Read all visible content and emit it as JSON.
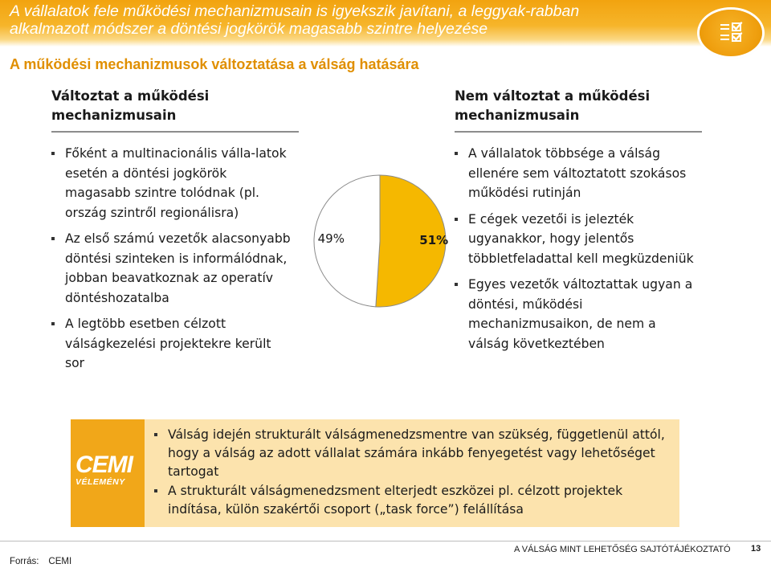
{
  "header": {
    "title": "A vállalatok fele működési mechanizmusain is igyekszik javítani, a leggyak-rabban alkalmazott módszer a döntési jogkörök magasabb szintre helyezése",
    "icon": "checklist-icon"
  },
  "subtitle": "A működési mechanizmusok változtatása a válság hatására",
  "left_column": {
    "heading": "Változtat a működési mechanizmusain",
    "bullets": [
      "Főként a multinacionális válla-latok esetén a döntési jogkörök magasabb szintre tolódnak (pl. ország szintről regionálisra)",
      "Az első számú vezetők alacsonyabb döntési szinteken is informálódnak, jobban beavatkoznak az operatív döntéshozatalba",
      "A legtöbb esetben célzott válságkezelési projektekre került sor"
    ]
  },
  "right_column": {
    "heading": "Nem változtat a működési mechanizmusain",
    "bullets": [
      "A vállalatok többsége a válság ellenére sem változtatott szokásos működési rutinján",
      "E cégek vezetői is jelezték ugyanakkor, hogy jelentős többletfeladattal kell megküzdeniük",
      "Egyes vezetők változtattak ugyan a döntési, működési mechanizmusaikon, de nem a válság következtében"
    ]
  },
  "chart_data": {
    "type": "pie",
    "slices": [
      {
        "label": "51%",
        "value": 51,
        "color": "#f5b800",
        "emphasis": "bold"
      },
      {
        "label": "49%",
        "value": 49,
        "color": "#ffffff",
        "emphasis": "normal"
      }
    ],
    "title": "",
    "legend": "none"
  },
  "opinion_box": {
    "logo_text": "CEMI",
    "logo_subtext": "VÉLEMÉNY",
    "bullets": [
      "Válság idején strukturált válságmenedzsmentre van szükség, függetlenül attól, hogy a válság az adott vállalat számára inkább fenyegetést vagy lehetőséget tartogat",
      "A strukturált válságmenedzsment elterjedt eszközei pl. célzott projektek indítása, külön szakértői csoport („task force”) felállítása"
    ]
  },
  "footer": {
    "report_title": "A VÁLSÁG MINT LEHETŐSÉG SAJTÓTÁJÉKOZTATÓ",
    "page_number": "13",
    "source_label": "Forrás:",
    "source_value": "CEMI"
  },
  "colors": {
    "accent": "#f2a30f",
    "subtitle": "#e08f00",
    "box_fill": "#fce3ad",
    "pie_gold": "#f5b800"
  }
}
